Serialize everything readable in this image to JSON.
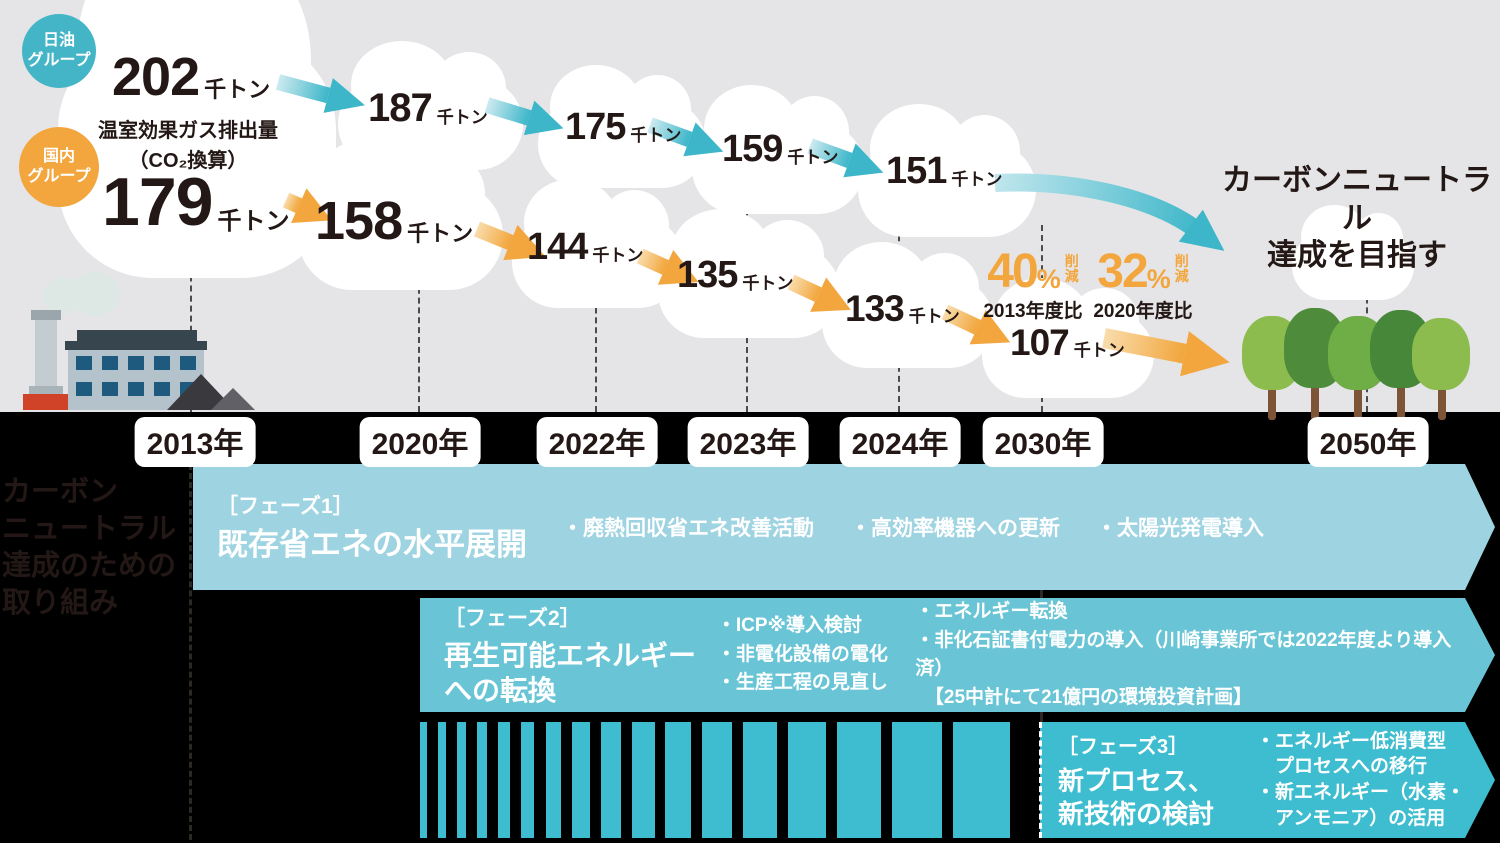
{
  "legend": {
    "nof_group": "日油\nグループ",
    "domestic_group": "国内\nグループ"
  },
  "ghg_label": "温室効果ガス排出量\n（CO₂換算）",
  "target_label": "カーボンニュートラル\n達成を目指す",
  "sidebar_label": "カーボン\nニュートラル\n達成のための\n取り組み",
  "years": [
    "2013年",
    "2020年",
    "2022年",
    "2023年",
    "2024年",
    "2030年",
    "2050年"
  ],
  "points": [
    {
      "group": "日油グループ",
      "year": "2013年",
      "value": "202",
      "unit": "千トン"
    },
    {
      "group": "日油グループ",
      "year": "2020年",
      "value": "187",
      "unit": "千トン"
    },
    {
      "group": "日油グループ",
      "year": "2022年",
      "value": "175",
      "unit": "千トン"
    },
    {
      "group": "日油グループ",
      "year": "2023年",
      "value": "159",
      "unit": "千トン"
    },
    {
      "group": "日油グループ",
      "year": "2024年",
      "value": "151",
      "unit": "千トン"
    },
    {
      "group": "国内グループ",
      "year": "2013年",
      "value": "179",
      "unit": "千トン"
    },
    {
      "group": "国内グループ",
      "year": "2020年",
      "value": "158",
      "unit": "千トン"
    },
    {
      "group": "国内グループ",
      "year": "2022年",
      "value": "144",
      "unit": "千トン"
    },
    {
      "group": "国内グループ",
      "year": "2023年",
      "value": "135",
      "unit": "千トン"
    },
    {
      "group": "国内グループ",
      "year": "2024年",
      "value": "133",
      "unit": "千トン"
    },
    {
      "group": "国内グループ",
      "year": "2030年",
      "value": "107",
      "unit": "千トン"
    }
  ],
  "reductions": [
    {
      "pct": "40",
      "sign": "%",
      "note": "削\n減",
      "base": "2013年度比"
    },
    {
      "pct": "32",
      "sign": "%",
      "note": "削\n減",
      "base": "2020年度比"
    }
  ],
  "phases": [
    {
      "tag": "［フェーズ1］",
      "title": "既存省エネの水平展開",
      "bullets": [
        "・廃熱回収省エネ改善活動",
        "・高効率機器への更新",
        "・太陽光発電導入"
      ]
    },
    {
      "tag": "［フェーズ2］",
      "title": "再生可能エネルギー\nへの転換",
      "bullets_col1": [
        "・ICP※導入検討",
        "・非電化設備の電化",
        "・生産工程の見直し"
      ],
      "bullets_col2": [
        "・エネルギー転換",
        "・非化石証書付電力の導入（川崎事業所では2022年度より導入済）",
        "　【25中計にて21億円の環境投資計画】"
      ]
    },
    {
      "tag": "［フェーズ3］",
      "title": "新プロセス、\n新技術の検討",
      "bullets": [
        "・エネルギー低消費型\n　プロセスへの移行",
        "・新エネルギー（水素・\n　アンモニア）の活用"
      ]
    }
  ],
  "colors": {
    "sky_bg": "#e5e5e7",
    "bar_bg": "#000000",
    "nof_blue": "#44b5c6",
    "domestic_orange": "#f2a63d",
    "phase1": "#9ed3e2",
    "phase2": "#69c5d6",
    "phase3": "#3fbdd0",
    "dark_text": "#231815"
  },
  "chart_data": {
    "type": "line",
    "title": "温室効果ガス排出量（CO₂換算）",
    "unit": "千トン",
    "x": [
      "2013",
      "2020",
      "2022",
      "2023",
      "2024",
      "2030",
      "2050"
    ],
    "series": [
      {
        "name": "日油グループ",
        "color": "#44b5c6",
        "values": [
          202,
          187,
          175,
          159,
          151,
          null,
          null
        ]
      },
      {
        "name": "国内グループ",
        "color": "#f2a63d",
        "values": [
          179,
          158,
          144,
          135,
          133,
          107,
          null
        ]
      }
    ],
    "annotations": [
      "40%削減 2013年度比（2030年）",
      "32%削減 2020年度比（2030年）",
      "2050年：カーボンニュートラル達成を目指す"
    ],
    "legend_position": "top-left",
    "grid": false
  }
}
